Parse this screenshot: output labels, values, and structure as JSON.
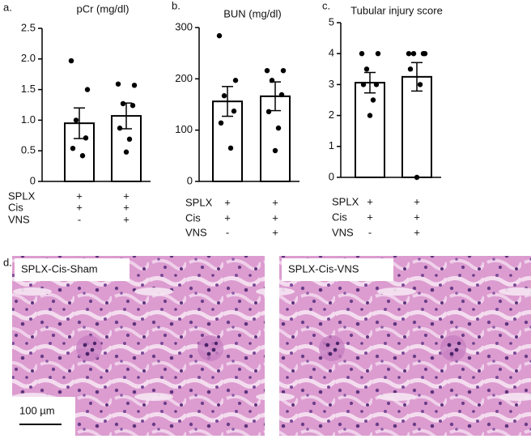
{
  "chart_data": [
    {
      "type": "bar",
      "panel": "a.",
      "title": "pCr (mg/dl)",
      "categories": [
        null,
        null
      ],
      "values": [
        0.95,
        1.07
      ],
      "errors": [
        0.25,
        0.21
      ],
      "points": [
        [
          1.97,
          1.5,
          1.0,
          0.71,
          0.54,
          0.42
        ],
        [
          1.59,
          1.57,
          1.27,
          1.24,
          0.87,
          0.69,
          0.48
        ]
      ],
      "ylim": [
        0,
        2.5
      ],
      "yticks": [
        0,
        0.5,
        {
          "value": 1,
          "label": "1.0"
        },
        1.5,
        {
          "value": 2,
          "label": "2.0"
        },
        2.5
      ],
      "color": "#ffffff",
      "conditions": [
        [
          "SPLX",
          "+",
          "+"
        ],
        [
          "Cis",
          "+",
          "+"
        ],
        [
          "VNS",
          "-",
          "+"
        ]
      ]
    },
    {
      "type": "bar",
      "panel": "b.",
      "title": "BUN (mg/dl)",
      "categories": [
        null,
        null
      ],
      "values": [
        156,
        166
      ],
      "errors": [
        29,
        28
      ],
      "points": [
        [
          284,
          197,
          167,
          137,
          114,
          65
        ],
        [
          216,
          216,
          197,
          169,
          136,
          104,
          60
        ]
      ],
      "ylim": [
        0,
        300
      ],
      "yticks": [
        0,
        100,
        200,
        300
      ],
      "color": "#ffffff",
      "conditions": [
        [
          "SPLX",
          "+",
          "+"
        ],
        [
          "Cis",
          "+",
          "+"
        ],
        [
          "VNS",
          "-",
          "+"
        ]
      ]
    },
    {
      "type": "bar",
      "panel": "c.",
      "title": "Tubular injury score",
      "categories": [
        null,
        null
      ],
      "values": [
        3.06,
        3.25
      ],
      "errors": [
        0.33,
        0.46
      ],
      "points": [
        [
          4,
          4,
          3.5,
          3,
          3,
          2.5,
          2
        ],
        [
          4,
          4,
          4,
          4,
          3.5,
          3,
          0
        ]
      ],
      "ylim": [
        0,
        5
      ],
      "yticks": [
        0,
        1,
        2,
        3,
        4,
        5
      ],
      "color": "#ffffff",
      "conditions": [
        [
          "SPLX",
          "+",
          "+"
        ],
        [
          "Cis",
          "+",
          "+"
        ],
        [
          "VNS",
          "-",
          "+"
        ]
      ]
    }
  ],
  "histology": {
    "panel": "d.",
    "images": [
      "SPLX-Cis-Sham",
      "SPLX-Cis-VNS"
    ],
    "scale_bar": "100 µm"
  }
}
